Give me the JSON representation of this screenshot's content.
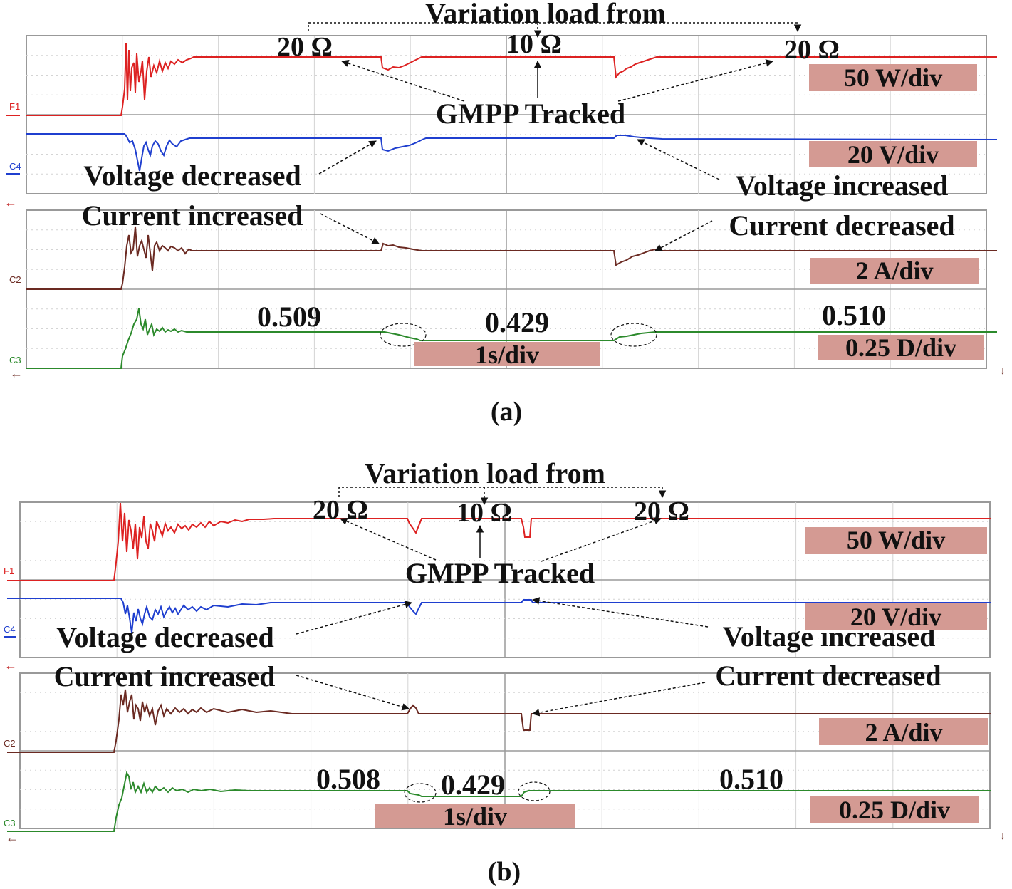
{
  "chart_data": [
    {
      "type": "line",
      "caption": "(a)",
      "header": "Variation load from",
      "loads": [
        "20 Ω",
        "10 Ω",
        "20 Ω"
      ],
      "annotations": {
        "gmpp": "GMPP Tracked",
        "voltage_decreased": "Voltage decreased",
        "voltage_increased": "Voltage increased",
        "current_increased": "Current increased",
        "current_decreased": "Current decreased"
      },
      "scales": [
        "50 W/div",
        "20 V/div",
        "2 A/div",
        "0.25 D/div",
        "1s/div"
      ],
      "duty_values": [
        "0.509",
        "0.429",
        "0.510"
      ],
      "series": [
        {
          "name": "F1",
          "color": "#dd2222"
        },
        {
          "name": "C4",
          "color": "#1f3fcf"
        },
        {
          "name": "C2",
          "color": "#6b2a22"
        },
        {
          "name": "C3",
          "color": "#2c8a2c"
        }
      ],
      "grid": true
    },
    {
      "type": "line",
      "caption": "(b)",
      "header": "Variation load from",
      "loads": [
        "20 Ω",
        "10 Ω",
        "20 Ω"
      ],
      "annotations": {
        "gmpp": "GMPP Tracked",
        "voltage_decreased": "Voltage decreased",
        "voltage_increased": "Voltage increased",
        "current_increased": "Current increased",
        "current_decreased": "Current decreased"
      },
      "scales": [
        "50 W/div",
        "20 V/div",
        "2 A/div",
        "0.25 D/div",
        "1s/div"
      ],
      "duty_values": [
        "0.508",
        "0.429",
        "0.510"
      ],
      "series": [
        {
          "name": "F1",
          "color": "#dd2222"
        },
        {
          "name": "C4",
          "color": "#1f3fcf"
        },
        {
          "name": "C2",
          "color": "#6b2a22"
        },
        {
          "name": "C3",
          "color": "#2c8a2c"
        }
      ],
      "grid": true
    }
  ]
}
